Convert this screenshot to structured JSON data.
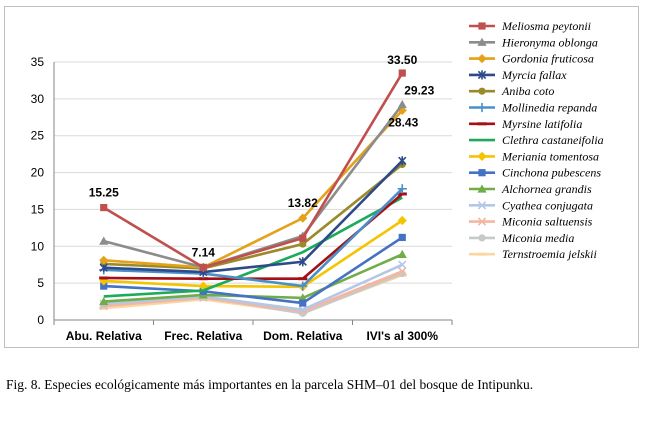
{
  "caption": "Fig. 8. Especies ecológicamente más importantes en la parcela SHM–01 del bosque de Intipunku.",
  "chart_data": {
    "type": "line",
    "categories": [
      "Abu. Relativa",
      "Frec. Relativa",
      "Dom. Relativa",
      "IVI's  al 300%"
    ],
    "ylim": [
      0,
      35
    ],
    "yticks": [
      0,
      5,
      10,
      15,
      20,
      25,
      30,
      35
    ],
    "grid": true,
    "legend": "right",
    "series": [
      {
        "name": "Meliosma peytonii",
        "color": "#c0504d",
        "marker": "square",
        "values": [
          15.25,
          7.14,
          11.1,
          33.5
        ]
      },
      {
        "name": "Hieronyma oblonga",
        "color": "#8c8c8c",
        "marker": "triangle",
        "values": [
          10.7,
          7.14,
          11.4,
          29.23
        ]
      },
      {
        "name": "Gordonia fruticosa",
        "color": "#e3a21a",
        "marker": "diamond",
        "values": [
          8.1,
          7.14,
          13.82,
          28.43
        ]
      },
      {
        "name": "Myrcia fallax",
        "color": "#2e4a8a",
        "marker": "star",
        "values": [
          7.1,
          6.5,
          7.9,
          21.6
        ]
      },
      {
        "name": "Aniba coto",
        "color": "#9b8a2a",
        "marker": "circle",
        "values": [
          7.6,
          7.0,
          10.3,
          21.1
        ]
      },
      {
        "name": "Mollinedia repanda",
        "color": "#4a90c8",
        "marker": "plus",
        "values": [
          6.8,
          6.3,
          4.6,
          17.8
        ]
      },
      {
        "name": "Myrsine latifolia",
        "color": "#a50f15",
        "marker": "dash",
        "values": [
          5.7,
          5.6,
          5.6,
          17.1
        ]
      },
      {
        "name": "Clethra castaneifolia",
        "color": "#1daa5a",
        "marker": "none",
        "values": [
          3.2,
          4.0,
          9.2,
          16.6
        ]
      },
      {
        "name": "Meriania tomentosa",
        "color": "#f5c400",
        "marker": "diamond",
        "values": [
          5.3,
          4.6,
          4.5,
          13.5
        ]
      },
      {
        "name": "Cinchona pubescens",
        "color": "#4472c4",
        "marker": "square",
        "values": [
          4.6,
          3.9,
          2.3,
          11.2
        ]
      },
      {
        "name": "Alchornea grandis",
        "color": "#70ad47",
        "marker": "triangle",
        "values": [
          2.5,
          3.4,
          3.0,
          8.9
        ]
      },
      {
        "name": "Cyathea conjugata",
        "color": "#b4c7e7",
        "marker": "cross",
        "values": [
          2.2,
          3.2,
          1.4,
          7.5
        ]
      },
      {
        "name": "Miconia saltuensis",
        "color": "#f4b6a0",
        "marker": "cross",
        "values": [
          1.9,
          3.0,
          1.2,
          6.6
        ]
      },
      {
        "name": "Miconia media",
        "color": "#c8c8c8",
        "marker": "circle",
        "values": [
          2.0,
          3.1,
          0.9,
          6.3
        ]
      },
      {
        "name": "Ternstroemia jelskii",
        "color": "#fad7a0",
        "marker": "dash",
        "values": [
          1.6,
          2.8,
          1.0,
          6.1
        ]
      }
    ],
    "annotations": [
      {
        "text": "15.25",
        "series": 0,
        "point": 0
      },
      {
        "text": "7.14",
        "series": 0,
        "point": 1
      },
      {
        "text": "13.82",
        "series": 2,
        "point": 2
      },
      {
        "text": "33.50",
        "series": 0,
        "point": 3
      },
      {
        "text": "29.23",
        "series": 1,
        "point": 3
      },
      {
        "text": "28.43",
        "series": 2,
        "point": 3
      }
    ]
  }
}
